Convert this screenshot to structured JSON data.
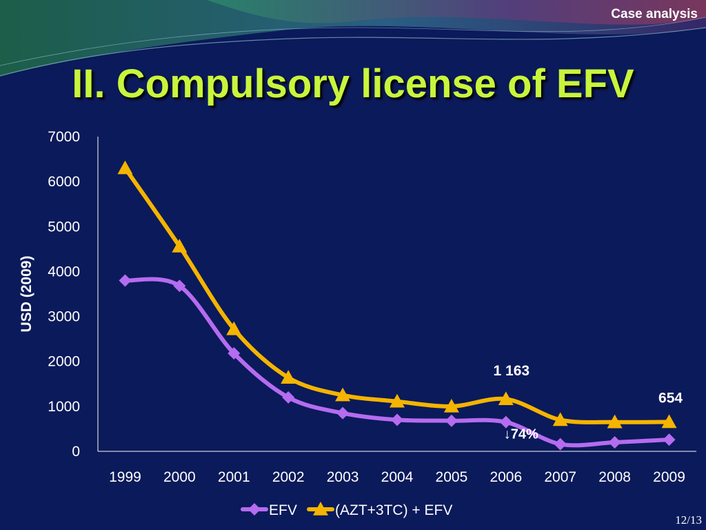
{
  "header": {
    "tag": "Case analysis"
  },
  "slide": {
    "title": "II. Compulsory license of EFV",
    "page": "12/13"
  },
  "colors": {
    "background": "#0b1a5a",
    "title": "#c8f53c",
    "efv": "#b56cf0",
    "combo": "#f5b400",
    "text": "#ffffff"
  },
  "chart_data": {
    "type": "line",
    "x": [
      "1999",
      "2000",
      "2001",
      "2002",
      "2003",
      "2004",
      "2005",
      "2006",
      "2007",
      "2008",
      "2009"
    ],
    "ylabel": "USD (2009)",
    "xlabel": "",
    "ylim": [
      0,
      7000
    ],
    "yticks": [
      0,
      1000,
      2000,
      3000,
      4000,
      5000,
      6000,
      7000
    ],
    "ytick_labels": [
      "0",
      "1000",
      "2000",
      "3000",
      "4000",
      "5000",
      "6000",
      "7000"
    ],
    "grid": false,
    "legend": "bottom",
    "series": [
      {
        "name": "EFV",
        "marker": "diamond",
        "color": "#b56cf0",
        "values": [
          3800,
          3680,
          2180,
          1200,
          850,
          700,
          680,
          650,
          160,
          200,
          260
        ]
      },
      {
        "name": "(AZT+3TC) + EFV",
        "marker": "triangle",
        "color": "#f5b400",
        "values": [
          6300,
          4560,
          2720,
          1640,
          1250,
          1110,
          1000,
          1163,
          700,
          650,
          654
        ]
      }
    ],
    "annotations": [
      {
        "text": "1 163",
        "x": "2006",
        "y": 1163
      },
      {
        "text": "654",
        "x": "2009",
        "y": 654
      },
      {
        "text": "↓74%",
        "x": "2006",
        "y": 650
      }
    ]
  }
}
